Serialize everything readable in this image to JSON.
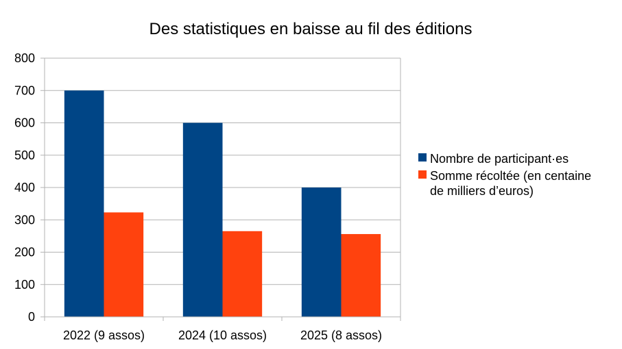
{
  "chart_data": {
    "type": "bar",
    "title": "Des statistiques en baisse au fil des éditions",
    "categories": [
      "2022 (9 assos)",
      "2024 (10 assos)",
      "2025 (8 assos)"
    ],
    "series": [
      {
        "name": "Nombre de participant·es",
        "values": [
          700,
          600,
          400
        ],
        "color": "#004586"
      },
      {
        "name": "Somme récoltée (en centaine de milliers d’euros)",
        "name_lines": [
          "Somme récoltée (en centaine",
          "de milliers d’euros)"
        ],
        "values": [
          323,
          265,
          256
        ],
        "color": "#ff420e"
      }
    ],
    "ylim": [
      0,
      800
    ],
    "yticks": [
      "0",
      "100",
      "200",
      "300",
      "400",
      "500",
      "600",
      "700",
      "800"
    ],
    "grid": true,
    "legend": "right"
  }
}
